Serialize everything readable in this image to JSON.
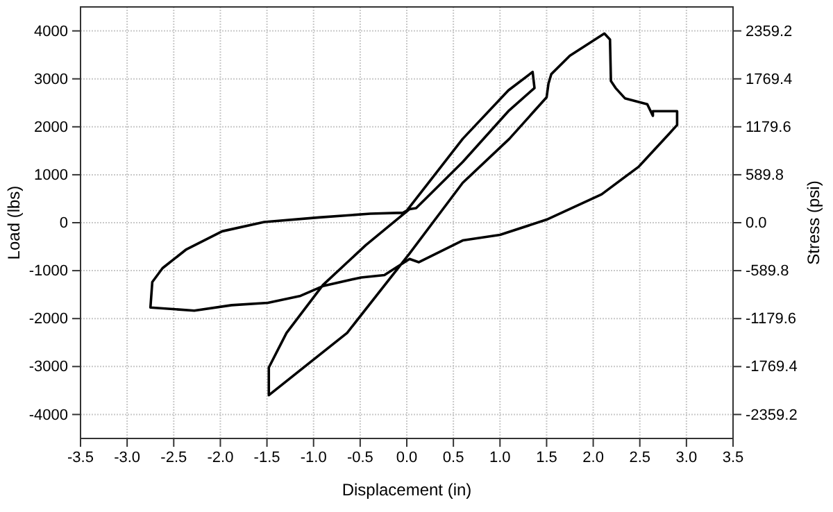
{
  "chart_data": {
    "type": "line",
    "xlabel": "Displacement (in)",
    "ylabel": "Load (lbs)",
    "y2label": "Stress (psi)",
    "xlim": [
      -3.5,
      3.5
    ],
    "ylim": [
      -4500,
      4500
    ],
    "y2lim": [
      -2654.1,
      2654.1
    ],
    "xticks": [
      {
        "value": -3.5,
        "label": "-3.5"
      },
      {
        "value": -3,
        "label": "-3.0"
      },
      {
        "value": -2.5,
        "label": "-2.5"
      },
      {
        "value": -2,
        "label": "-2.0"
      },
      {
        "value": -1.5,
        "label": "-1.5"
      },
      {
        "value": -1,
        "label": "-1.0"
      },
      {
        "value": -0.5,
        "label": "-0.5"
      },
      {
        "value": 0,
        "label": "0.0"
      },
      {
        "value": 0.5,
        "label": "0.5"
      },
      {
        "value": 1,
        "label": "1.0"
      },
      {
        "value": 1.5,
        "label": "1.5"
      },
      {
        "value": 2,
        "label": "2.0"
      },
      {
        "value": 2.5,
        "label": "2.5"
      },
      {
        "value": 3,
        "label": "3.0"
      },
      {
        "value": 3.5,
        "label": "3.5"
      }
    ],
    "yticks": [
      -4000,
      -3000,
      -2000,
      -1000,
      0,
      1000,
      2000,
      3000,
      4000
    ],
    "y2ticks": [
      -2359.2,
      -1769.4,
      -1179.6,
      -589.8,
      {
        "value": 0,
        "label": "0.0"
      },
      589.8,
      1179.6,
      1769.4,
      2359.2
    ],
    "grid": true,
    "marker": "none",
    "line_style": "solid",
    "series": [
      {
        "color": "#000000",
        "x": [
          0,
          0.6,
          1.09,
          1.35,
          1.37,
          1.09,
          0.6,
          0.1,
          0.03,
          -0.44,
          -0.9,
          -1.29,
          -1.48,
          -1.48,
          -0.64,
          0.03,
          0.6,
          1.1,
          1.5,
          1.52,
          1.55,
          1.75,
          2.12,
          2.18,
          2.19,
          2.24,
          2.34,
          2.58,
          2.64,
          2.64,
          2.9,
          2.9,
          2.81,
          2.49,
          2.09,
          1.5,
          1.0,
          0.6,
          0.13,
          0.03,
          -0.24,
          -0.49,
          -0.89,
          -1.14,
          -1.49,
          -1.88,
          -2.28,
          -2.75,
          -2.73,
          -2.62,
          -2.37,
          -1.98,
          -1.53,
          -0.94,
          -0.39,
          -0.04,
          0.03
        ],
        "values": [
          250,
          1749,
          2760,
          3145,
          2809,
          2327,
          1266,
          303,
          283,
          -468,
          -1300,
          -2298,
          -3020,
          -3598,
          -2298,
          -642,
          832,
          1749,
          2616,
          2900,
          3098,
          3483,
          3945,
          3821,
          2954,
          2809,
          2595,
          2471,
          2230,
          2327,
          2327,
          2038,
          1844,
          1171,
          592,
          64,
          -254,
          -370,
          -824,
          -757,
          -1093,
          -1142,
          -1315,
          -1526,
          -1671,
          -1720,
          -1835,
          -1768,
          -1237,
          -948,
          -564,
          -179,
          14,
          110,
          188,
          208,
          283
        ]
      }
    ]
  }
}
